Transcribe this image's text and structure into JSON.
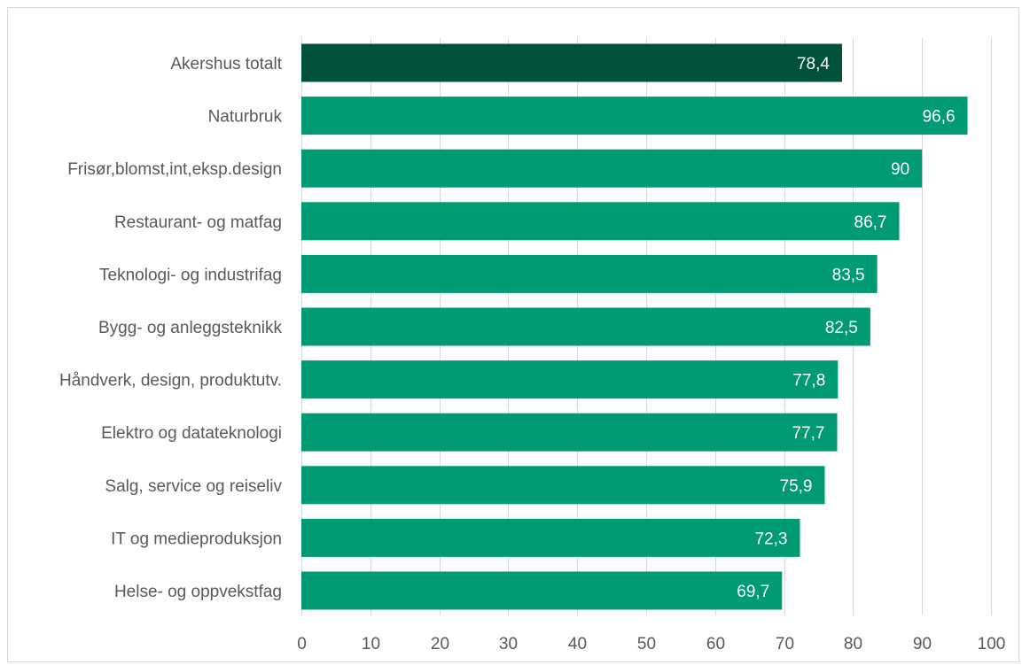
{
  "chart_data": {
    "type": "bar",
    "orientation": "horizontal",
    "title": "",
    "xlabel": "",
    "ylabel": "",
    "categories": [
      "Akershus totalt",
      "Naturbruk",
      "Frisør,blomst,int,eksp.design",
      "Restaurant- og matfag",
      "Teknologi- og industrifag",
      "Bygg- og anleggsteknikk",
      "Håndverk, design, produktutv.",
      "Elektro og datateknologi",
      "Salg, service og reiseliv",
      "IT og medieproduksjon",
      "Helse- og oppvekstfag"
    ],
    "values": [
      78.4,
      96.6,
      90,
      86.7,
      83.5,
      82.5,
      77.8,
      77.7,
      75.9,
      72.3,
      69.7
    ],
    "data_labels": [
      "78,4",
      "96,6",
      "90",
      "86,7",
      "83,5",
      "82,5",
      "77,8",
      "77,7",
      "75,9",
      "72,3",
      "69,7"
    ],
    "xlim": [
      0,
      100
    ],
    "xticks": [
      "0",
      "10",
      "20",
      "30",
      "40",
      "50",
      "60",
      "70",
      "80",
      "90",
      "100"
    ],
    "grid": true,
    "legend": "none",
    "colors": {
      "highlight": "#00503a",
      "bar": "#009a74",
      "grid": "#d9d9d9",
      "text": "#595959",
      "data_label": "#ffffff"
    }
  }
}
